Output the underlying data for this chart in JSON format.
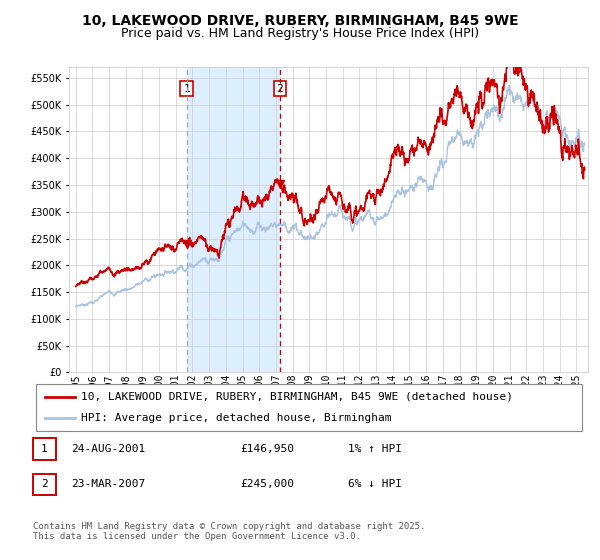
{
  "title": "10, LAKEWOOD DRIVE, RUBERY, BIRMINGHAM, B45 9WE",
  "subtitle": "Price paid vs. HM Land Registry's House Price Index (HPI)",
  "ylim": [
    0,
    570000
  ],
  "yticks": [
    0,
    50000,
    100000,
    150000,
    200000,
    250000,
    300000,
    350000,
    400000,
    450000,
    500000,
    550000
  ],
  "xlim_start": 1994.6,
  "xlim_end": 2025.7,
  "purchase1_year": 2001.646,
  "purchase1_price": 146950,
  "purchase2_year": 2007.23,
  "purchase2_price": 245000,
  "shade_start": 2001.646,
  "shade_end": 2007.23,
  "legend_entry1": "10, LAKEWOOD DRIVE, RUBERY, BIRMINGHAM, B45 9WE (detached house)",
  "legend_entry2": "HPI: Average price, detached house, Birmingham",
  "annotation1_date": "24-AUG-2001",
  "annotation1_price": "£146,950",
  "annotation1_hpi": "1% ↑ HPI",
  "annotation2_date": "23-MAR-2007",
  "annotation2_price": "£245,000",
  "annotation2_hpi": "6% ↓ HPI",
  "footer": "Contains HM Land Registry data © Crown copyright and database right 2025.\nThis data is licensed under the Open Government Licence v3.0.",
  "hpi_color": "#aac4e0",
  "price_color": "#cc0000",
  "shade_color": "#ddeeff",
  "grid_color": "#cccccc",
  "bg_color": "#ffffff",
  "title_fontsize": 10,
  "subtitle_fontsize": 9,
  "tick_fontsize": 7,
  "legend_fontsize": 8,
  "ann_fontsize": 8,
  "footer_fontsize": 6.5
}
